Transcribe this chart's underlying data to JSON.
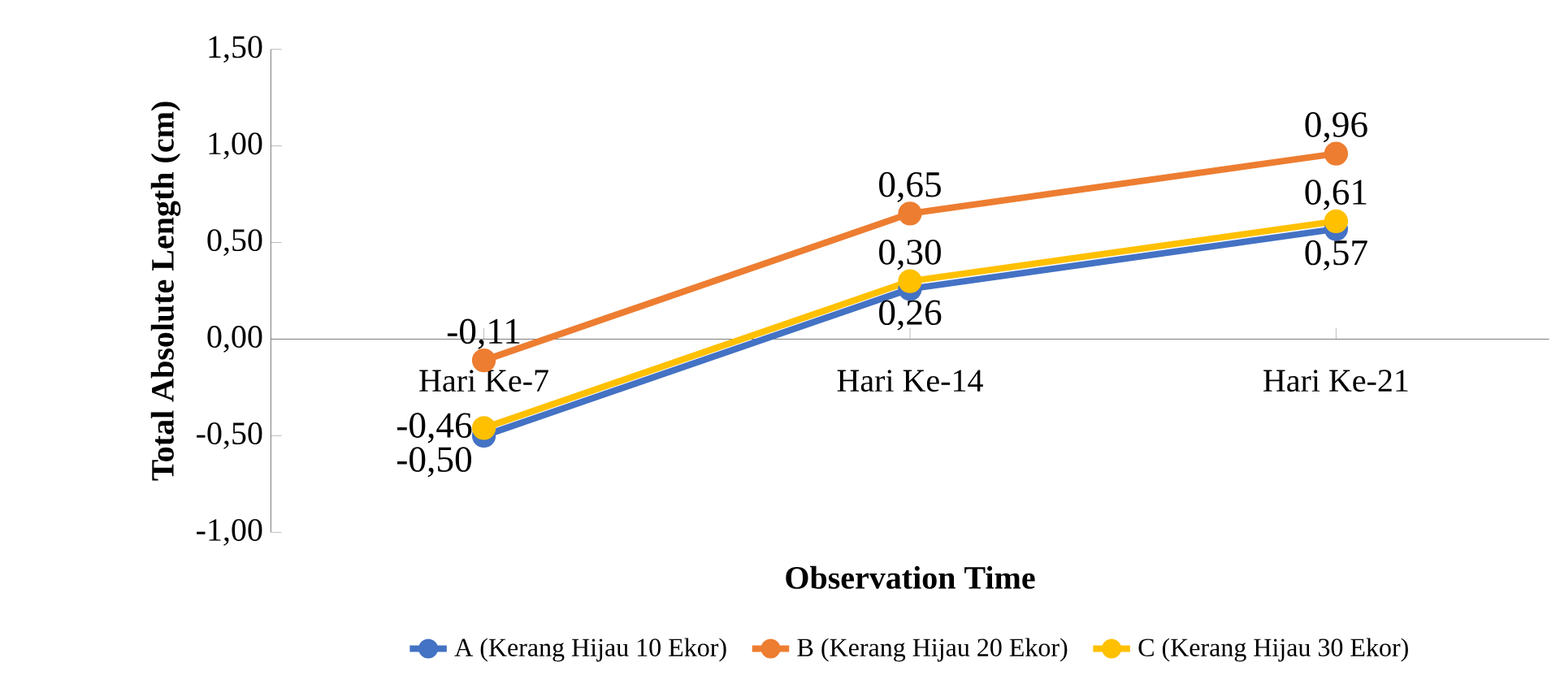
{
  "chart_data": {
    "type": "line",
    "ylabel": "Total Absolute Length (cm)",
    "xlabel": "Observation Time",
    "categories": [
      "Hari Ke-7",
      "Hari Ke-14",
      "Hari Ke-21"
    ],
    "ylim": [
      -1,
      1.5
    ],
    "yticks": [
      {
        "value": -1,
        "label": "-1,00"
      },
      {
        "value": -0.5,
        "label": "-0,50"
      },
      {
        "value": 0,
        "label": "0,00"
      },
      {
        "value": 0.5,
        "label": "0,50"
      },
      {
        "value": 1,
        "label": "1,00"
      },
      {
        "value": 1.5,
        "label": "1,50"
      }
    ],
    "series": [
      {
        "name": "A (Kerang Hijau 10 Ekor)",
        "color": "#4472c4",
        "values": [
          -0.5,
          0.26,
          0.57
        ],
        "value_labels": [
          "-0,50",
          "0,26",
          "0,57"
        ]
      },
      {
        "name": "B (Kerang Hijau 20 Ekor)",
        "color": "#ed7d31",
        "values": [
          -0.11,
          0.65,
          0.96
        ],
        "value_labels": [
          "-0,11",
          "0,65",
          "0,96"
        ]
      },
      {
        "name": "C (Kerang Hijau 30 Ekor)",
        "color": "#ffc000",
        "values": [
          -0.46,
          0.3,
          0.61
        ],
        "value_labels": [
          "-0,46",
          "0,30",
          "0,61"
        ]
      }
    ],
    "marker": "circle",
    "line_style": "solid",
    "legend": "bottom",
    "grid": false
  }
}
